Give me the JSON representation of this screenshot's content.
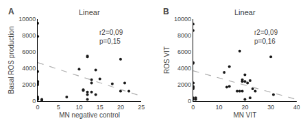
{
  "chart_data": [
    {
      "type": "scatter",
      "label": "A",
      "title": "Linear",
      "xlabel": "MN negative control",
      "ylabel": "Basal ROS production",
      "xlim": [
        0,
        25
      ],
      "ylim": [
        0,
        10000
      ],
      "xticks": [
        0,
        5,
        10,
        15,
        20,
        25
      ],
      "yticks": [
        0,
        2000,
        4000,
        6000,
        8000,
        10000
      ],
      "annotation": "r2=0,09\np=0,15",
      "grid": false,
      "series": [
        {
          "type": "scatter",
          "color": "#1a1a1a",
          "marker": "circle",
          "x": [
            0,
            0,
            0,
            0,
            0,
            0,
            0,
            0,
            0,
            1,
            1,
            7,
            10,
            11,
            11,
            12,
            12,
            12,
            12,
            12,
            13,
            13,
            13,
            14,
            14,
            15,
            18,
            20,
            20,
            21,
            22
          ],
          "values": [
            9500,
            7900,
            3600,
            2400,
            2200,
            2000,
            500,
            300,
            200,
            200,
            100,
            500,
            3900,
            1400,
            1300,
            5500,
            5400,
            1100,
            800,
            200,
            2600,
            2200,
            1100,
            3800,
            800,
            2700,
            2100,
            5100,
            1200,
            2200,
            1200
          ]
        },
        {
          "type": "line",
          "color": "#b0b0b0",
          "line_style": "dashed",
          "x": [
            0,
            25
          ],
          "values": [
            4700,
            600
          ]
        }
      ]
    },
    {
      "type": "scatter",
      "label": "B",
      "title": "Linear",
      "xlabel": "MN VIT",
      "ylabel": "ROS VIT",
      "xlim": [
        0,
        40
      ],
      "ylim": [
        0,
        10000
      ],
      "xticks": [
        0,
        10,
        20,
        30,
        40
      ],
      "yticks": [
        0,
        2000,
        4000,
        6000,
        8000,
        10000
      ],
      "annotation": "r2=0,09\np=0,16",
      "grid": false,
      "series": [
        {
          "type": "scatter",
          "color": "#1a1a1a",
          "marker": "circle",
          "x": [
            0,
            0,
            0,
            0,
            0,
            0,
            0,
            0,
            0,
            0,
            0,
            0,
            1,
            1,
            12,
            13,
            14,
            14,
            17,
            18,
            18,
            19,
            19,
            19,
            20,
            20,
            20,
            21,
            22,
            22,
            23,
            24,
            30,
            31
          ],
          "values": [
            9400,
            8600,
            4700,
            4600,
            2200,
            2200,
            1800,
            1700,
            1600,
            1500,
            400,
            200,
            400,
            200,
            3500,
            1700,
            4200,
            1800,
            1200,
            6100,
            1200,
            2600,
            2400,
            1200,
            3200,
            2400,
            200,
            2200,
            2500,
            400,
            1500,
            1200,
            5400,
            800
          ]
        },
        {
          "type": "line",
          "color": "#b0b0b0",
          "line_style": "dashed",
          "x": [
            0,
            40
          ],
          "values": [
            3700,
            200
          ]
        }
      ]
    }
  ]
}
